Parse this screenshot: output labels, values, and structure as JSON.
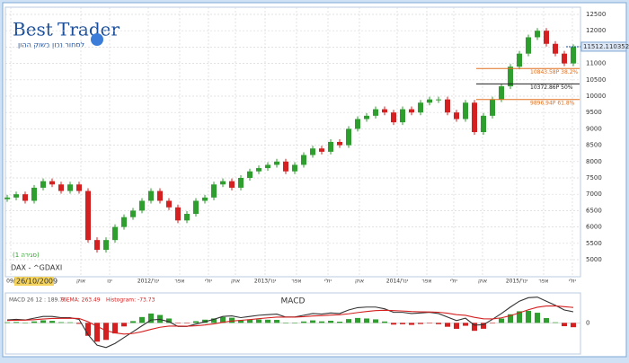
{
  "logo": {
    "brand1": "Best",
    "brand2": "Trader",
    "tagline": "לסחור נכון בשוק ההון"
  },
  "chart_data": {
    "type": "candlestick",
    "series_name": "DAX - ^GDAXI",
    "close_label": "(סגירה 1)",
    "date_label": "26/10/2009",
    "up_color": "#2e9e2e",
    "down_color": "#d42020",
    "xlim": [
      -0.5,
      64
    ],
    "xticks": [
      {
        "value": 0.4,
        "label": "09/"
      },
      {
        "value": 8.2,
        "label": "אוק"
      },
      {
        "value": 11.4,
        "label": "ינו"
      },
      {
        "value": 15.7,
        "label": "2012/'ינו"
      },
      {
        "value": 19.2,
        "label": "אפר"
      },
      {
        "value": 22.4,
        "label": "יולי"
      },
      {
        "value": 25.4,
        "label": "אוק"
      },
      {
        "value": 28.7,
        "label": "2013/'ינו"
      },
      {
        "value": 32.2,
        "label": "אפר"
      },
      {
        "value": 35.7,
        "label": "יולי"
      },
      {
        "value": 39.2,
        "label": "אוק"
      },
      {
        "value": 43.4,
        "label": "2014/'ינו"
      },
      {
        "value": 46.7,
        "label": "אפר"
      },
      {
        "value": 49.7,
        "label": "יולי"
      },
      {
        "value": 52.9,
        "label": "אוק"
      },
      {
        "value": 56.7,
        "label": "2015/'ינו"
      },
      {
        "value": 59.7,
        "label": "אפר"
      },
      {
        "value": 62.9,
        "label": "יולי"
      }
    ],
    "ylim": [
      5000,
      12500
    ],
    "yticks": [
      5000,
      5500,
      6000,
      6500,
      7000,
      7500,
      8000,
      8500,
      9000,
      9500,
      10000,
      10500,
      11000,
      11500,
      12000,
      12500
    ],
    "grid": true,
    "open": [
      6850,
      6900,
      7000,
      6800,
      7200,
      7400,
      7300,
      7100,
      7300,
      7100,
      5600,
      5300,
      5600,
      6000,
      6300,
      6500,
      6800,
      7100,
      6800,
      6600,
      6200,
      6400,
      6800,
      6900,
      7300,
      7400,
      7200,
      7500,
      7700,
      7800,
      7900,
      8000,
      7700,
      7900,
      8200,
      8400,
      8300,
      8600,
      8500,
      9000,
      9300,
      9400,
      9600,
      9500,
      9200,
      9600,
      9500,
      9800,
      9900,
      9900,
      9500,
      9300,
      9800,
      8900,
      9400,
      9900,
      10300,
      10900,
      11300,
      11800,
      12000,
      11600,
      11300,
      11000
    ],
    "close": [
      6900,
      7000,
      6800,
      7200,
      7400,
      7300,
      7100,
      7300,
      7100,
      5600,
      5300,
      5600,
      6000,
      6300,
      6500,
      6800,
      7100,
      6800,
      6600,
      6200,
      6400,
      6800,
      6900,
      7300,
      7400,
      7200,
      7500,
      7700,
      7800,
      7900,
      8000,
      7700,
      7900,
      8200,
      8400,
      8300,
      8600,
      8500,
      9000,
      9300,
      9400,
      9600,
      9500,
      9200,
      9600,
      9500,
      9800,
      9900,
      9900,
      9500,
      9300,
      9800,
      8900,
      9400,
      9900,
      10300,
      10900,
      11300,
      11800,
      12000,
      11600,
      11300,
      11000,
      11500
    ],
    "last_price": 11512.110352,
    "fib_levels": [
      {
        "value": 10843.58,
        "label": "10843.58P  38.2%",
        "color": "#e07020"
      },
      {
        "value": 10372.86,
        "label": "10372.86P  50%",
        "color": "#222222"
      },
      {
        "value": 9896.94,
        "label": "9896.94P  61.8%",
        "color": "#e07020"
      }
    ],
    "macd": {
      "title": "MACD",
      "macd_label": "MACD 26 12 : 189.76",
      "signal_label": "9 EMA: 263.49",
      "hist_label": "Histogram: -73.73",
      "ylim": [
        -500,
        450
      ],
      "yticks": [
        0
      ],
      "macd_color": "#333333",
      "signal_color": "#d42020",
      "macd_values": [
        50,
        60,
        50,
        80,
        110,
        110,
        90,
        90,
        60,
        -200,
        -380,
        -420,
        -350,
        -250,
        -150,
        -50,
        50,
        60,
        20,
        -60,
        -60,
        -20,
        20,
        60,
        110,
        120,
        90,
        110,
        130,
        140,
        150,
        100,
        100,
        130,
        160,
        150,
        170,
        160,
        220,
        260,
        270,
        270,
        240,
        180,
        180,
        160,
        170,
        180,
        160,
        100,
        40,
        80,
        -40,
        -30,
        60,
        160,
        270,
        370,
        430,
        440,
        370,
        300,
        220,
        189.76
      ],
      "signal_values": [
        40,
        45,
        47,
        55,
        66,
        75,
        78,
        80,
        76,
        20,
        -60,
        -130,
        -170,
        -190,
        -180,
        -150,
        -110,
        -75,
        -55,
        -55,
        -56,
        -49,
        -35,
        -16,
        10,
        32,
        44,
        57,
        72,
        86,
        99,
        99,
        99,
        106,
        117,
        124,
        133,
        139,
        155,
        176,
        195,
        210,
        216,
        209,
        203,
        194,
        189,
        187,
        182,
        166,
        141,
        129,
        95,
        70,
        68,
        86,
        123,
        172,
        224,
        267,
        288,
        290,
        276,
        263.49
      ],
      "histogram": [
        10,
        15,
        3,
        25,
        44,
        35,
        12,
        10,
        -16,
        -220,
        -320,
        -290,
        -180,
        -60,
        30,
        100,
        160,
        135,
        75,
        -5,
        -4,
        29,
        55,
        76,
        100,
        88,
        46,
        53,
        58,
        54,
        51,
        1,
        1,
        24,
        43,
        26,
        37,
        21,
        65,
        84,
        75,
        60,
        24,
        -29,
        -23,
        -34,
        -19,
        -7,
        -22,
        -66,
        -101,
        -49,
        -135,
        -100,
        -8,
        74,
        147,
        198,
        206,
        173,
        82,
        10,
        -56,
        -73.73
      ]
    }
  }
}
